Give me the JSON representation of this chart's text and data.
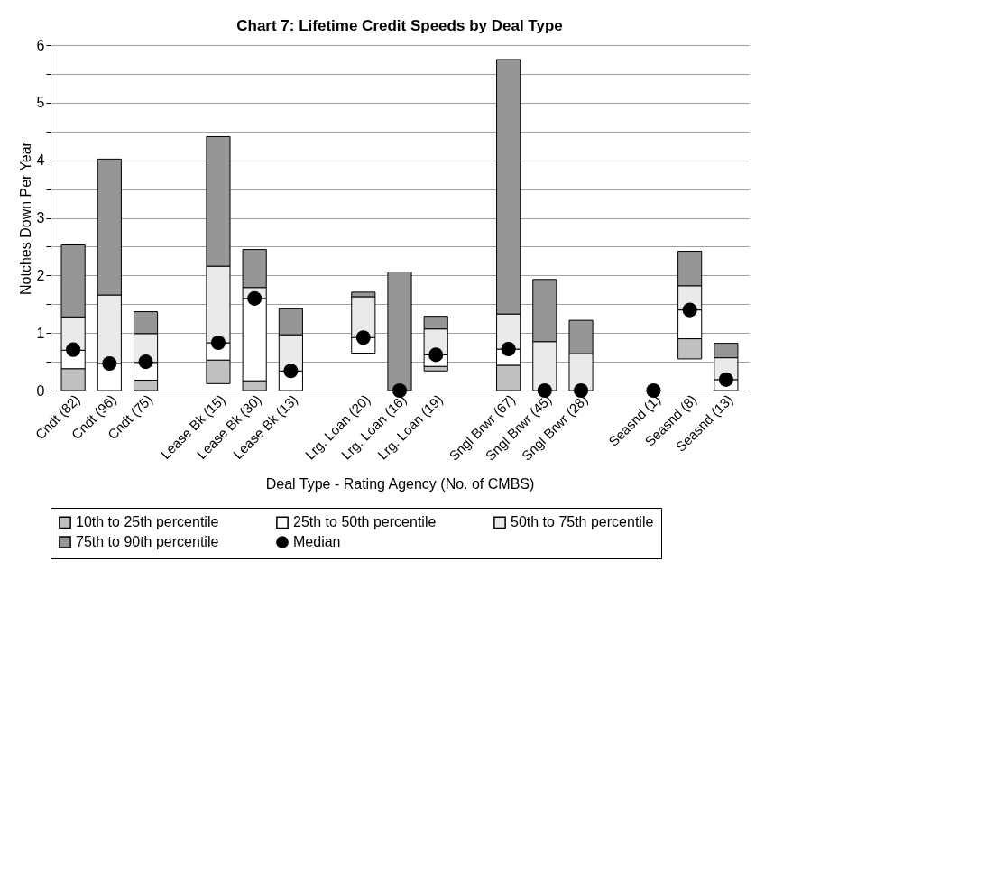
{
  "chart_data": {
    "type": "bar",
    "title": "Chart 7:  Lifetime Credit Speeds by Deal Type",
    "xlabel": "Deal Type - Rating Agency (No. of CMBS)",
    "ylabel": "Notches Down Per Year",
    "categories": [
      "Cndt (82)",
      "Cndt (96)",
      "Cndt (75)",
      null,
      "Lease Bk (15)",
      "Lease Bk (30)",
      "Lease Bk (13)",
      null,
      "Lrg. Loan (20)",
      "Lrg. Loan (16)",
      "Lrg. Loan (19)",
      null,
      "Sngl Brwr (67)",
      "Sngl Brwr (45)",
      "Sngl Brwr (28)",
      null,
      "Seasnd (1)",
      "Seasnd (8)",
      "Seasnd (13)"
    ],
    "series": [
      {
        "name": "10th to 25th percentile",
        "color": "#c0c0c0",
        "base": [
          0,
          null,
          0,
          null,
          0.12,
          0,
          null,
          null,
          null,
          null,
          0.34,
          null,
          0,
          null,
          null,
          null,
          null,
          0.55,
          null
        ],
        "values": [
          0.38,
          null,
          0.18,
          null,
          0.41,
          0.17,
          null,
          null,
          null,
          null,
          0.08,
          null,
          0.44,
          null,
          null,
          null,
          null,
          0.35,
          null
        ]
      },
      {
        "name": "25th to 50th percentile",
        "color": "#ffffff",
        "base": [
          0.38,
          0,
          0.18,
          null,
          0.53,
          0.17,
          0,
          null,
          0.65,
          null,
          0.42,
          null,
          0.44,
          null,
          null,
          null,
          null,
          0.9,
          0
        ],
        "values": [
          0.32,
          0.47,
          0.31,
          null,
          0.3,
          1.43,
          0.34,
          null,
          0.27,
          null,
          0.2,
          null,
          0.28,
          null,
          null,
          null,
          null,
          0.5,
          0.19
        ]
      },
      {
        "name": "50th to 75th percentile",
        "color": "#eaeaea",
        "base": [
          0.7,
          0.47,
          0.49,
          null,
          0.83,
          1.6,
          0.34,
          null,
          0.92,
          null,
          0.62,
          null,
          0.72,
          0,
          0,
          null,
          null,
          1.4,
          0.19
        ],
        "values": [
          0.58,
          1.19,
          0.5,
          null,
          1.33,
          0.19,
          0.63,
          null,
          0.71,
          null,
          0.45,
          null,
          0.61,
          0.85,
          0.64,
          null,
          null,
          0.42,
          0.38
        ]
      },
      {
        "name": "75th to 90th percentile",
        "color": "#969696",
        "base": [
          1.28,
          1.66,
          0.99,
          null,
          2.16,
          1.79,
          0.97,
          null,
          1.63,
          0,
          1.07,
          null,
          1.33,
          0.85,
          0.64,
          null,
          null,
          1.82,
          0.57
        ],
        "values": [
          1.25,
          2.36,
          0.38,
          null,
          2.25,
          0.66,
          0.45,
          null,
          0.08,
          2.06,
          0.22,
          null,
          4.42,
          1.08,
          0.58,
          null,
          null,
          0.6,
          0.25
        ]
      },
      {
        "name": "Median",
        "type": "scatter",
        "marker": "circle",
        "color": "#000000",
        "values": [
          0.71,
          0.47,
          0.5,
          null,
          0.83,
          1.6,
          0.34,
          null,
          0.92,
          0,
          0.62,
          null,
          0.72,
          0,
          0,
          null,
          0,
          1.4,
          0.19
        ]
      }
    ],
    "ylim": [
      0,
      6
    ],
    "yticks": [
      0,
      {
        "value": 0.5,
        "label": null
      },
      1,
      {
        "value": 1.5,
        "label": null
      },
      2,
      {
        "value": 2.5,
        "label": null
      },
      3,
      {
        "value": 3.5,
        "label": null
      },
      4,
      {
        "value": 4.5,
        "label": null
      },
      5,
      {
        "value": 5.5,
        "label": null
      },
      6
    ],
    "grid": "y",
    "legend": "bottom"
  }
}
